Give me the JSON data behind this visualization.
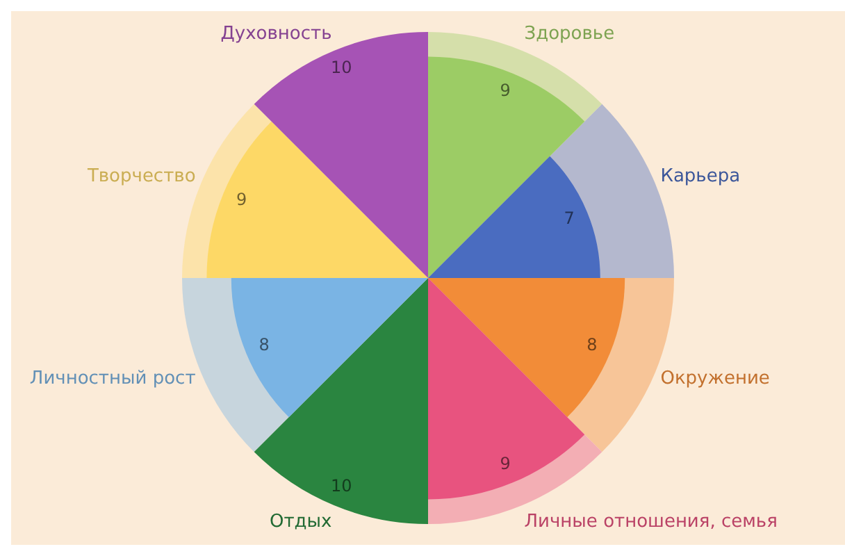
{
  "chart_data": {
    "type": "other",
    "categories": [
      "Здоровье",
      "Карьера",
      "Окружение",
      "Личные отношения, семья",
      "Отдых",
      "Личностный рост",
      "Творчество",
      "Духовность"
    ],
    "series": [
      {
        "values": [
          9,
          7,
          8,
          9,
          10,
          8,
          9,
          10
        ],
        "colors": [
          "#9ccc65",
          "#4a6cc0",
          "#f28c38",
          "#e8537f",
          "#2a8540",
          "#7ab4e4",
          "#fdd866",
          "#a653b5"
        ],
        "value_labels": [
          "9",
          "7",
          "8",
          "9",
          "10",
          "8",
          "9",
          "10"
        ]
      }
    ],
    "legend": false
  }
}
